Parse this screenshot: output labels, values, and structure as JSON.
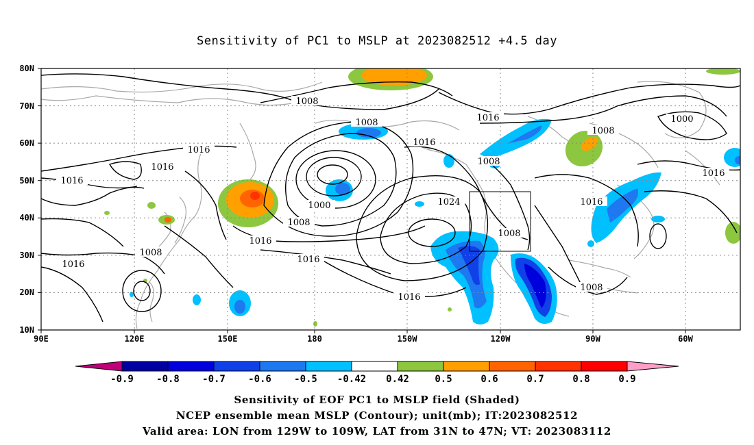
{
  "title": "Sensitivity of PC1 to MSLP at 2023082512 +4.5 day",
  "map": {
    "lat_labels": [
      "80N",
      "70N",
      "60N",
      "50N",
      "40N",
      "30N",
      "20N",
      "10N"
    ],
    "lon_labels": [
      "90E",
      "120E",
      "150E",
      "180",
      "150W",
      "120W",
      "90W",
      "60W"
    ],
    "contour_labels": [
      "1008",
      "1016",
      "1000",
      "1024"
    ],
    "box": {
      "lon_from": "129W",
      "lon_to": "109W",
      "lat_from": "31N",
      "lat_to": "47N"
    }
  },
  "colorbar": {
    "labels": [
      "-0.9",
      "-0.8",
      "-0.7",
      "-0.6",
      "-0.5",
      "-0.42",
      "0.42",
      "0.5",
      "0.6",
      "0.7",
      "0.8",
      "0.9"
    ],
    "colors": [
      "#c0007a",
      "#0000a0",
      "#0000dd",
      "#1040e8",
      "#1e78f0",
      "#00c0ff",
      "#ffffff",
      "#8dc63f",
      "#ffa000",
      "#ff6400",
      "#ff3200",
      "#ff0000",
      "#ff9fc8"
    ]
  },
  "footer": {
    "line1": "Sensitivity of EOF PC1 to MSLP field (Shaded)",
    "line2": "NCEP ensemble mean MSLP (Contour); unit(mb); IT:2023082512",
    "line3": "Valid area: LON from 129W to 109W, LAT from 31N to 47N; VT: 2023083112"
  }
}
